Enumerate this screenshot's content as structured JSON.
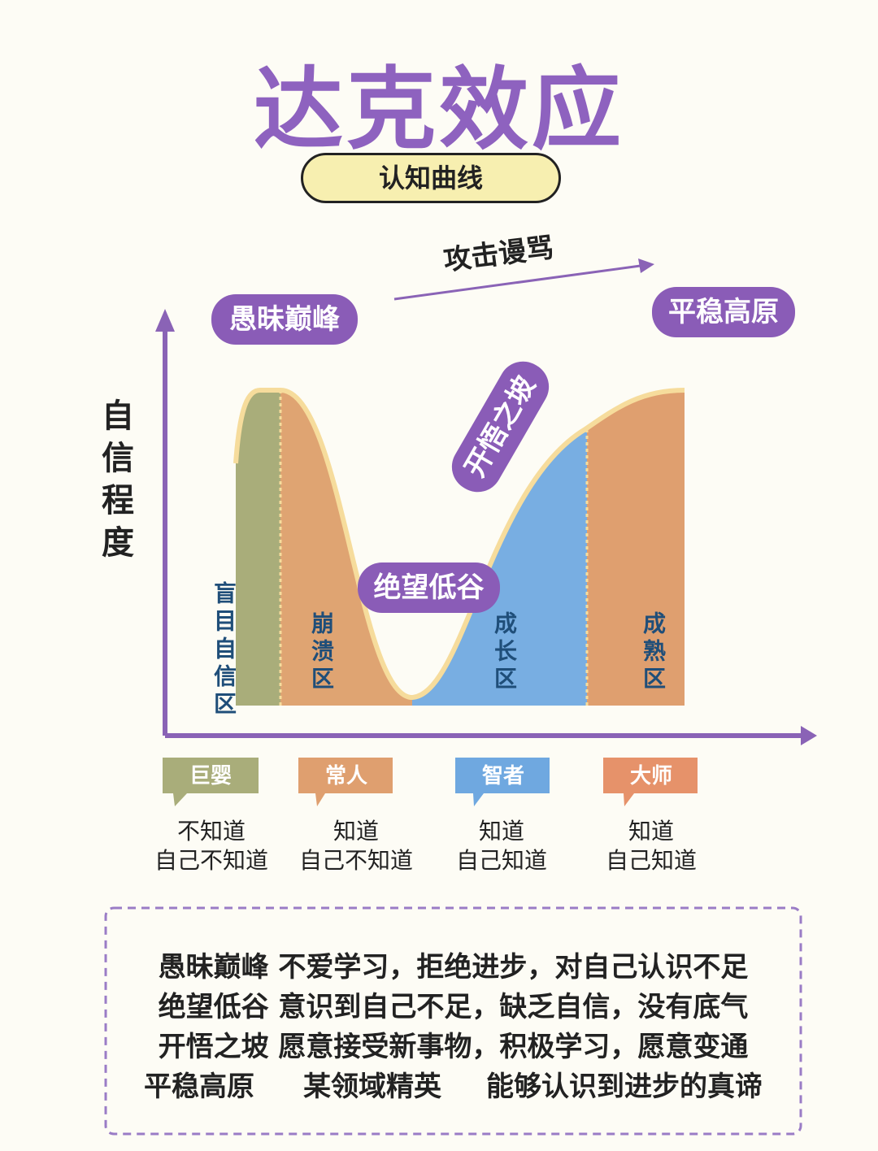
{
  "title": "达克效应",
  "subtitle": "认知曲线",
  "arrow_label": "攻击谩骂",
  "y_axis_label": "自信程度",
  "stages": [
    "愚昧巅峰",
    "绝望低谷",
    "开悟之坡",
    "平稳高原"
  ],
  "zones": [
    "盲目自信区",
    "崩溃区",
    "成长区",
    "成熟区"
  ],
  "roles": [
    {
      "name": "巨婴",
      "desc": [
        "不知道",
        "自己不知道"
      ]
    },
    {
      "name": "常人",
      "desc": [
        "知道",
        "自己不知道"
      ]
    },
    {
      "name": "智者",
      "desc": [
        "知道",
        "自己知道"
      ]
    },
    {
      "name": "大师",
      "desc": [
        "知道",
        "自己知道"
      ]
    }
  ],
  "notes": [
    [
      "愚昧巅峰",
      "不爱学习，拒绝进步，对自己认识不足"
    ],
    [
      "绝望低谷",
      "意识到自己不足，缺乏自信，没有底气"
    ],
    [
      "开悟之坡",
      "愿意接受新事物，积极学习，愿意变通"
    ],
    [
      "平稳高原",
      "某领域精英",
      "能够认识到进步的真谛"
    ]
  ]
}
